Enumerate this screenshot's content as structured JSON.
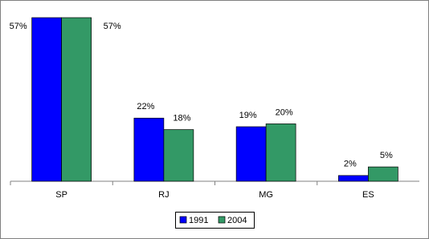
{
  "chart_data": {
    "type": "bar",
    "categories": [
      "SP",
      "RJ",
      "MG",
      "ES"
    ],
    "series": [
      {
        "name": "1991",
        "color": "#0000ff",
        "values": [
          57,
          22,
          19,
          2
        ],
        "value_labels": [
          "57%",
          "22%",
          "19%",
          "2%"
        ]
      },
      {
        "name": "2004",
        "color": "#339966",
        "values": [
          57,
          18,
          20,
          5
        ],
        "value_labels": [
          "57%",
          "18%",
          "20%",
          "5%"
        ]
      }
    ],
    "legend": "bottom"
  }
}
